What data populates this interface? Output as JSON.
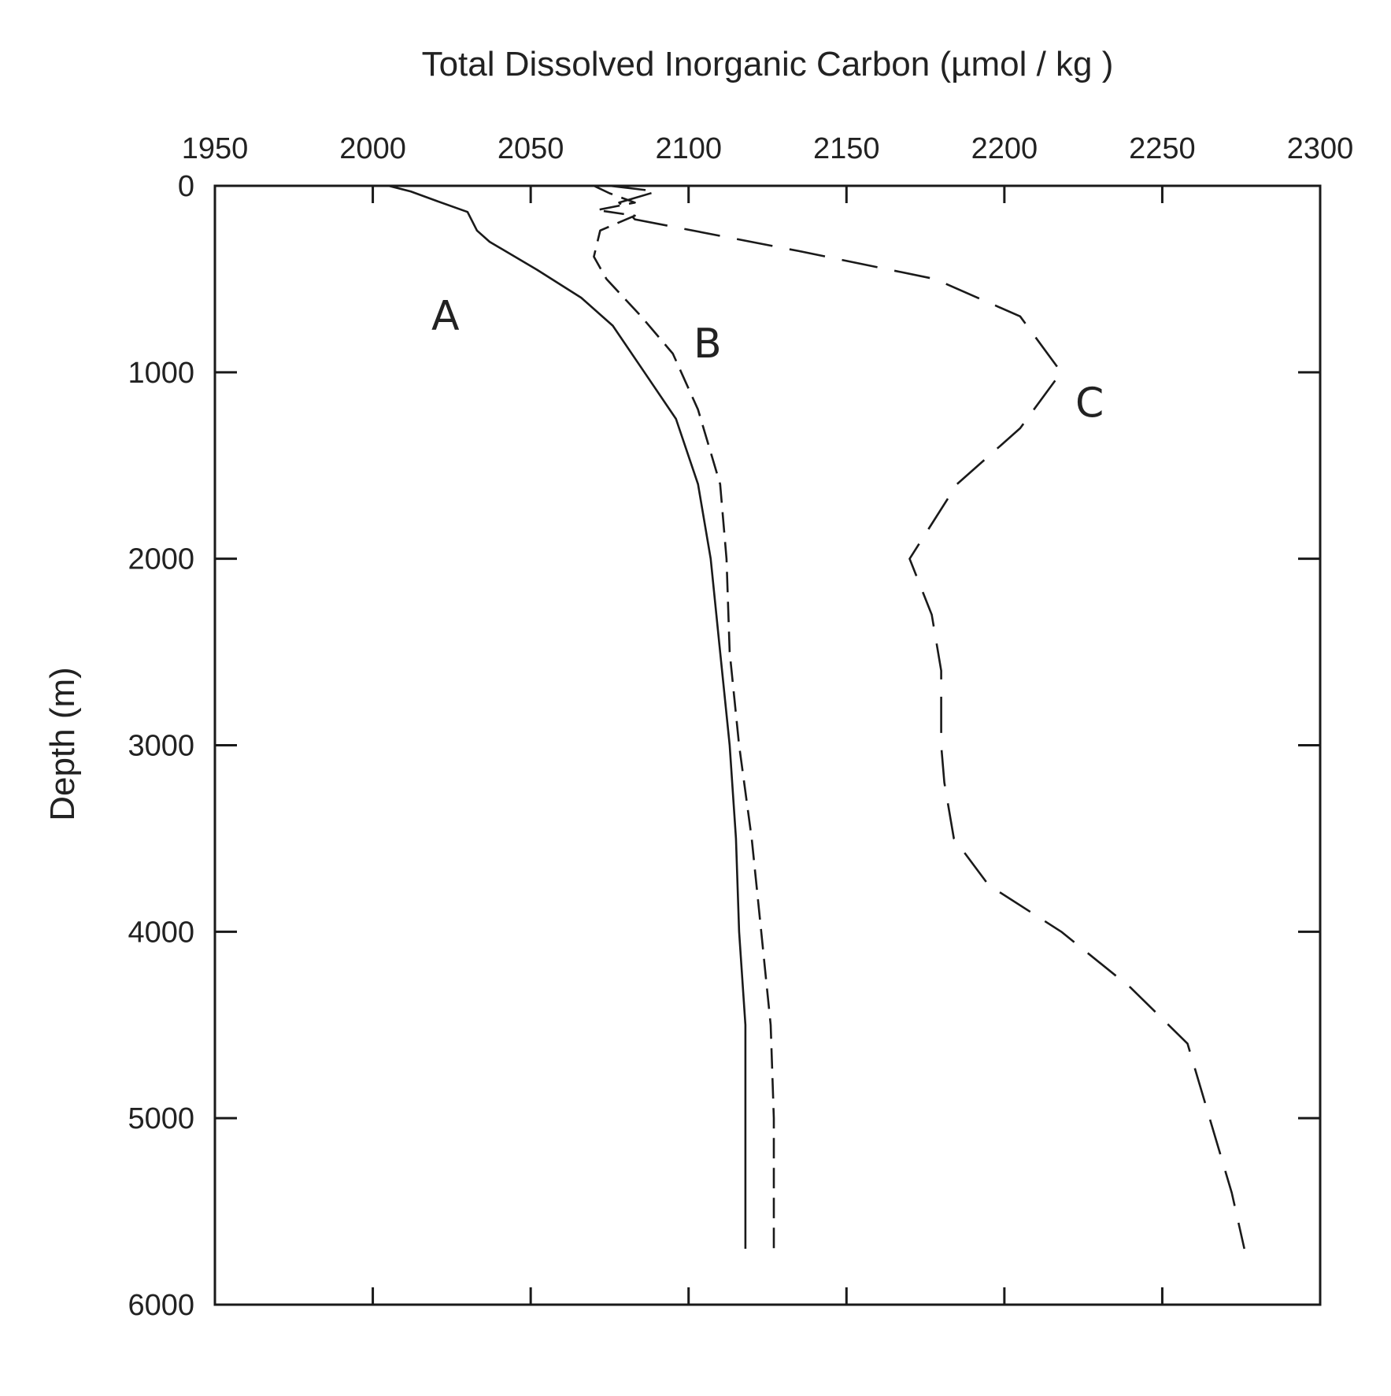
{
  "chart_data": {
    "type": "line",
    "title": "Total Dissolved Inorganic Carbon (µmol / kg )",
    "xlabel": "",
    "ylabel": "Depth (m)",
    "xlim": [
      1950,
      2300
    ],
    "ylim": [
      0,
      6000
    ],
    "y_inverted": true,
    "x_axis_position": "top",
    "x_ticks": [
      1950,
      2000,
      2050,
      2100,
      2150,
      2200,
      2250,
      2300
    ],
    "y_ticks": [
      0,
      1000,
      2000,
      3000,
      4000,
      5000,
      6000
    ],
    "grid": false,
    "legend": "none",
    "series": [
      {
        "name": "A",
        "style": "solid",
        "points": [
          [
            2005,
            0
          ],
          [
            2012,
            30
          ],
          [
            2020,
            80
          ],
          [
            2030,
            140
          ],
          [
            2033,
            240
          ],
          [
            2037,
            300
          ],
          [
            2052,
            450
          ],
          [
            2066,
            600
          ],
          [
            2076,
            750
          ],
          [
            2086,
            1000
          ],
          [
            2096,
            1250
          ],
          [
            2103,
            1600
          ],
          [
            2107,
            2000
          ],
          [
            2110,
            2500
          ],
          [
            2113,
            3000
          ],
          [
            2115,
            3500
          ],
          [
            2116,
            4000
          ],
          [
            2118,
            4500
          ],
          [
            2118,
            5000
          ],
          [
            2118,
            5700
          ]
        ]
      },
      {
        "name": "B",
        "style": "dashed",
        "points": [
          [
            2070,
            0
          ],
          [
            2075,
            40
          ],
          [
            2083,
            90
          ],
          [
            2071,
            130
          ],
          [
            2083,
            160
          ],
          [
            2072,
            240
          ],
          [
            2070,
            380
          ],
          [
            2074,
            500
          ],
          [
            2085,
            700
          ],
          [
            2095,
            900
          ],
          [
            2103,
            1200
          ],
          [
            2110,
            1600
          ],
          [
            2112,
            2000
          ],
          [
            2113,
            2500
          ],
          [
            2116,
            3000
          ],
          [
            2120,
            3500
          ],
          [
            2123,
            4000
          ],
          [
            2126,
            4500
          ],
          [
            2127,
            5000
          ],
          [
            2127,
            5700
          ]
        ]
      },
      {
        "name": "C",
        "style": "dashed",
        "points": [
          [
            2075,
            0
          ],
          [
            2090,
            30
          ],
          [
            2078,
            90
          ],
          [
            2083,
            180
          ],
          [
            2135,
            350
          ],
          [
            2178,
            500
          ],
          [
            2205,
            700
          ],
          [
            2218,
            1000
          ],
          [
            2205,
            1300
          ],
          [
            2185,
            1600
          ],
          [
            2170,
            2000
          ],
          [
            2177,
            2300
          ],
          [
            2180,
            2600
          ],
          [
            2180,
            3000
          ],
          [
            2181,
            3200
          ],
          [
            2184,
            3500
          ],
          [
            2195,
            3750
          ],
          [
            2218,
            4000
          ],
          [
            2240,
            4300
          ],
          [
            2258,
            4600
          ],
          [
            2265,
            5000
          ],
          [
            2272,
            5400
          ],
          [
            2276,
            5700
          ]
        ]
      }
    ]
  }
}
